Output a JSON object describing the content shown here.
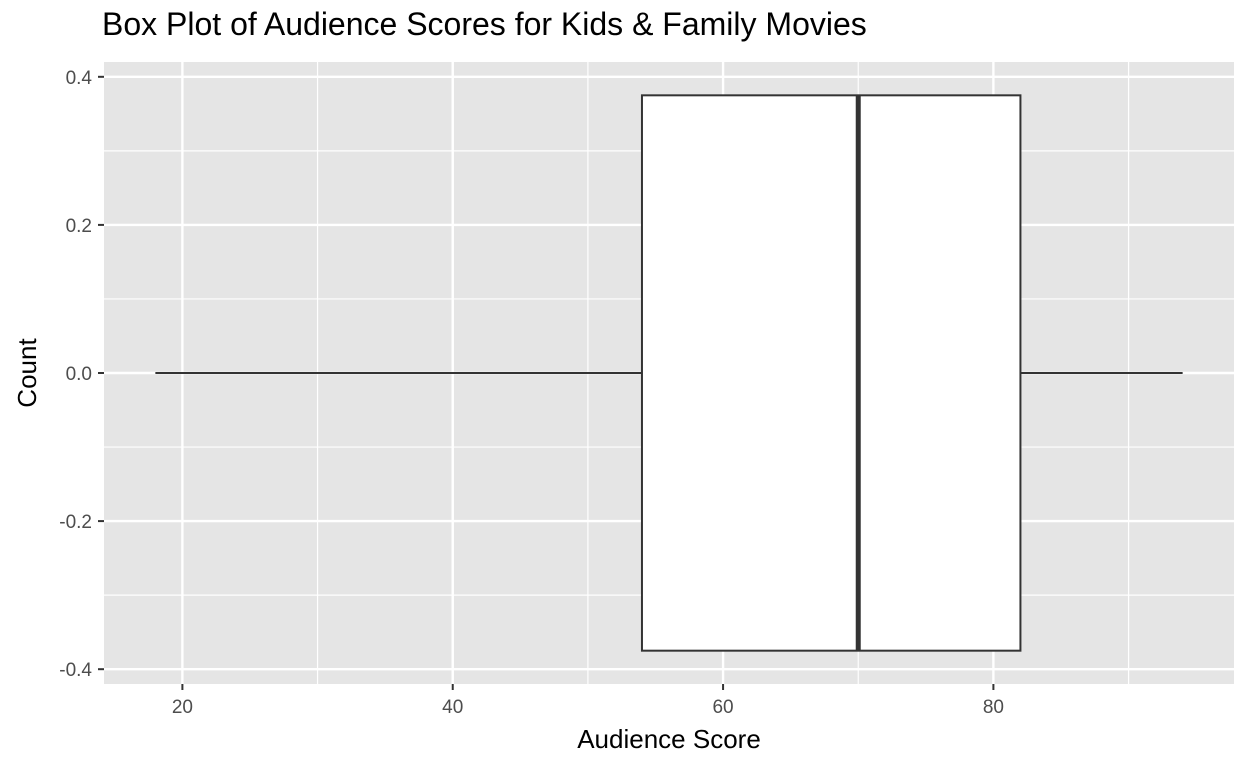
{
  "chart_data": {
    "type": "boxplot",
    "title": "Box Plot of Audience Scores for Kids & Family Movies",
    "xlabel": "Audience Score",
    "ylabel": "Count",
    "xlim": [
      14.2,
      97.8
    ],
    "ylim": [
      -0.42,
      0.42
    ],
    "x_ticks": [
      20,
      40,
      60,
      80
    ],
    "x_tick_labels": [
      "20",
      "40",
      "60",
      "80"
    ],
    "x_minor": [
      30,
      50,
      70,
      90
    ],
    "y_ticks": [
      -0.4,
      -0.2,
      0.0,
      0.2,
      0.4
    ],
    "y_tick_labels": [
      "-0.4",
      "-0.2",
      "0.0",
      "0.2",
      "0.4"
    ],
    "y_minor": [
      -0.3,
      -0.1,
      0.1,
      0.3
    ],
    "grid": true,
    "box": {
      "whisker_low": 18,
      "q1": 54,
      "median": 70,
      "q3": 82,
      "whisker_high": 94,
      "y_bottom": -0.375,
      "y_top": 0.375,
      "y_center": 0.0
    },
    "colors": {
      "panel": "#e5e5e5",
      "grid": "#ffffff",
      "box_fill": "#ffffff",
      "box_stroke": "#333333"
    }
  }
}
